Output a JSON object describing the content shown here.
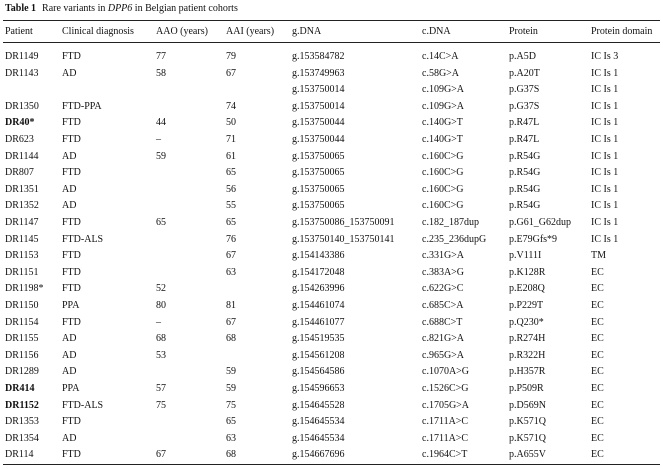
{
  "caption": {
    "label": "Table 1",
    "title": [
      "Rare variants in ",
      "DPP6",
      " in Belgian patient cohorts"
    ]
  },
  "table": {
    "columns": [
      "Patient",
      "Clinical diagnosis",
      "AAO (years)",
      "AAI (years)",
      "g.DNA",
      "c.DNA",
      "Protein",
      "Protein domain"
    ],
    "rows": [
      [
        "DR1149",
        "FTD",
        77,
        79,
        "g.153584782",
        "c.14C>A",
        "p.A5D",
        "IC Is 3"
      ],
      [
        "DR1143",
        "AD",
        58,
        67,
        "g.153749963",
        "c.58G>A",
        "p.A20T",
        "IC Is 1"
      ],
      [
        null,
        null,
        null,
        null,
        "g.153750014",
        "c.109G>A",
        "p.G37S",
        "IC Is 1"
      ],
      [
        "DR1350",
        "FTD-PPA",
        null,
        74,
        "g.153750014",
        "c.109G>A",
        "p.G37S",
        "IC Is 1"
      ],
      [
        "DR40*",
        "FTD",
        44,
        50,
        "g.153750044",
        "c.140G>T",
        "p.R47L",
        "IC Is 1"
      ],
      [
        "DR623",
        "FTD",
        "–",
        71,
        "g.153750044",
        "c.140G>T",
        "p.R47L",
        "IC Is 1"
      ],
      [
        "DR1144",
        "AD",
        59,
        61,
        "g.153750065",
        "c.160C>G",
        "p.R54G",
        "IC Is 1"
      ],
      [
        "DR807",
        "FTD",
        null,
        65,
        "g.153750065",
        "c.160C>G",
        "p.R54G",
        "IC Is 1"
      ],
      [
        "DR1351",
        "AD",
        null,
        56,
        "g.153750065",
        "c.160C>G",
        "p.R54G",
        "IC Is 1"
      ],
      [
        "DR1352",
        "AD",
        null,
        55,
        "g.153750065",
        "c.160C>G",
        "p.R54G",
        "IC Is 1"
      ],
      [
        "DR1147",
        "FTD",
        65,
        65,
        "g.153750086_153750091",
        "c.182_187dup",
        "p.G61_G62dup",
        "IC Is 1"
      ],
      [
        "DR1145",
        "FTD-ALS",
        null,
        76,
        "g.153750140_153750141",
        "c.235_236dupG",
        "p.E79Gfs*9",
        "IC Is 1"
      ],
      [
        "DR1153",
        "FTD",
        null,
        67,
        "g.154143386",
        "c.331G>A",
        "p.V111I",
        "TM"
      ],
      [
        "DR1151",
        "FTD",
        null,
        63,
        "g.154172048",
        "c.383A>G",
        "p.K128R",
        "EC"
      ],
      [
        "DR1198*",
        "FTD",
        52,
        null,
        "g.154263996",
        "c.622G>C",
        "p.E208Q",
        "EC"
      ],
      [
        "DR1150",
        "PPA",
        80,
        81,
        "g.154461074",
        "c.685C>A",
        "p.P229T",
        "EC"
      ],
      [
        "DR1154",
        "FTD",
        "–",
        67,
        "g.154461077",
        "c.688C>T",
        "p.Q230*",
        "EC"
      ],
      [
        "DR1155",
        "AD",
        68,
        68,
        "g.154519535",
        "c.821G>A",
        "p.R274H",
        "EC"
      ],
      [
        "DR1156",
        "AD",
        53,
        null,
        "g.154561208",
        "c.965G>A",
        "p.R322H",
        "EC"
      ],
      [
        "DR1289",
        "AD",
        null,
        59,
        "g.154564586",
        "c.1070A>G",
        "p.H357R",
        "EC"
      ],
      [
        "DR414",
        "PPA",
        57,
        59,
        "g.154596653",
        "c.1526C>G",
        "p.P509R",
        "EC"
      ],
      [
        "DR1152",
        "FTD-ALS",
        75,
        75,
        "g.154645528",
        "c.1705G>A",
        "p.D569N",
        "EC"
      ],
      [
        "DR1353",
        "FTD",
        null,
        65,
        "g.154645534",
        "c.1711A>C",
        "p.K571Q",
        "EC"
      ],
      [
        "DR1354",
        "AD",
        null,
        63,
        "g.154645534",
        "c.1711A>C",
        "p.K571Q",
        "EC"
      ],
      [
        "DR114",
        "FTD",
        67,
        68,
        "g.154667696",
        "c.1964C>T",
        "p.A655V",
        "EC"
      ]
    ]
  }
}
